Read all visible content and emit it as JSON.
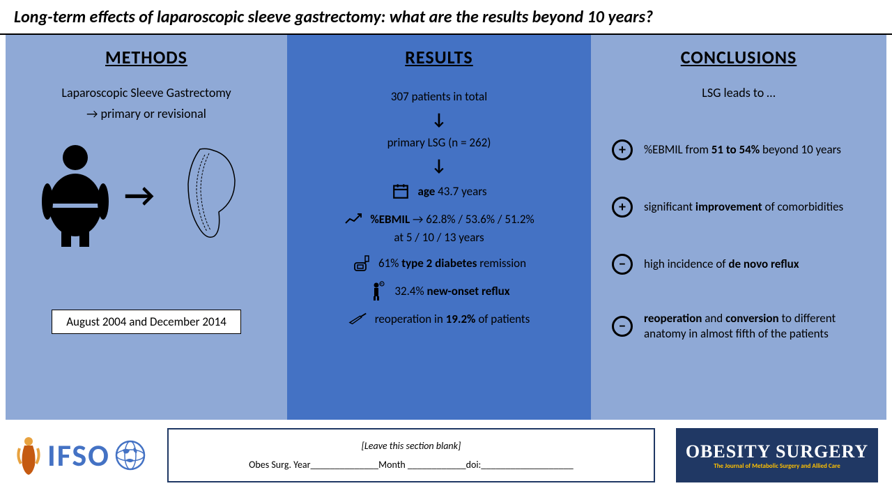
{
  "title": "Long-term effects of laparoscopic sleeve gastrectomy: what are the results beyond 10 years?",
  "columns": {
    "methods": {
      "header": "METHODS",
      "procedure": "Laparoscopic Sleeve Gastrectomy",
      "procedure_sub": "→ primary or revisional",
      "date_range": "August 2004 and December 2014"
    },
    "results": {
      "header": "RESULTS",
      "total_patients": "307 patients in total",
      "primary_lsg": "primary LSG (n = 262)",
      "age_label": "age",
      "age_value": "43.7 years",
      "ebmil_label": "%EBMIL",
      "ebmil_values": "→ 62.8% / 53.6% / 51.2%",
      "ebmil_years": "at 5 / 10 / 13 years",
      "diabetes_pct": "61%",
      "diabetes_text": "type 2 diabetes",
      "diabetes_suffix": "remission",
      "reflux_pct": "32.4%",
      "reflux_text": "new-onset reflux",
      "reop_prefix": "reoperation in",
      "reop_pct": "19.2%",
      "reop_suffix": "of patients"
    },
    "conclusions": {
      "header": "CONCLUSIONS",
      "intro": "LSG leads to …",
      "items": [
        {
          "sign": "+",
          "html": "%EBMIL from <b>51 to 54%</b> beyond 10 years"
        },
        {
          "sign": "+",
          "html": "significant <b>improvement</b> of comorbidities"
        },
        {
          "sign": "−",
          "html": "high incidence of <b>de novo reflux</b>"
        },
        {
          "sign": "−",
          "html": "<b>reoperation</b> and <b>conversion</b> to different anatomy in almost fifth of the patients"
        }
      ]
    }
  },
  "footer": {
    "ifso": "IFSO",
    "citation_top": "[Leave this section blank]",
    "citation_bottom": "Obes Surg. Year______________Month ____________doi:___________________",
    "obesity_title": "OBESITY SURGERY",
    "obesity_subtitle": "The Journal of Metabolic Surgery and Allied Care"
  },
  "colors": {
    "light_blue": "#8fa9d6",
    "mid_blue": "#4472c4",
    "dark_blue": "#203864",
    "gold": "#ffc000"
  }
}
